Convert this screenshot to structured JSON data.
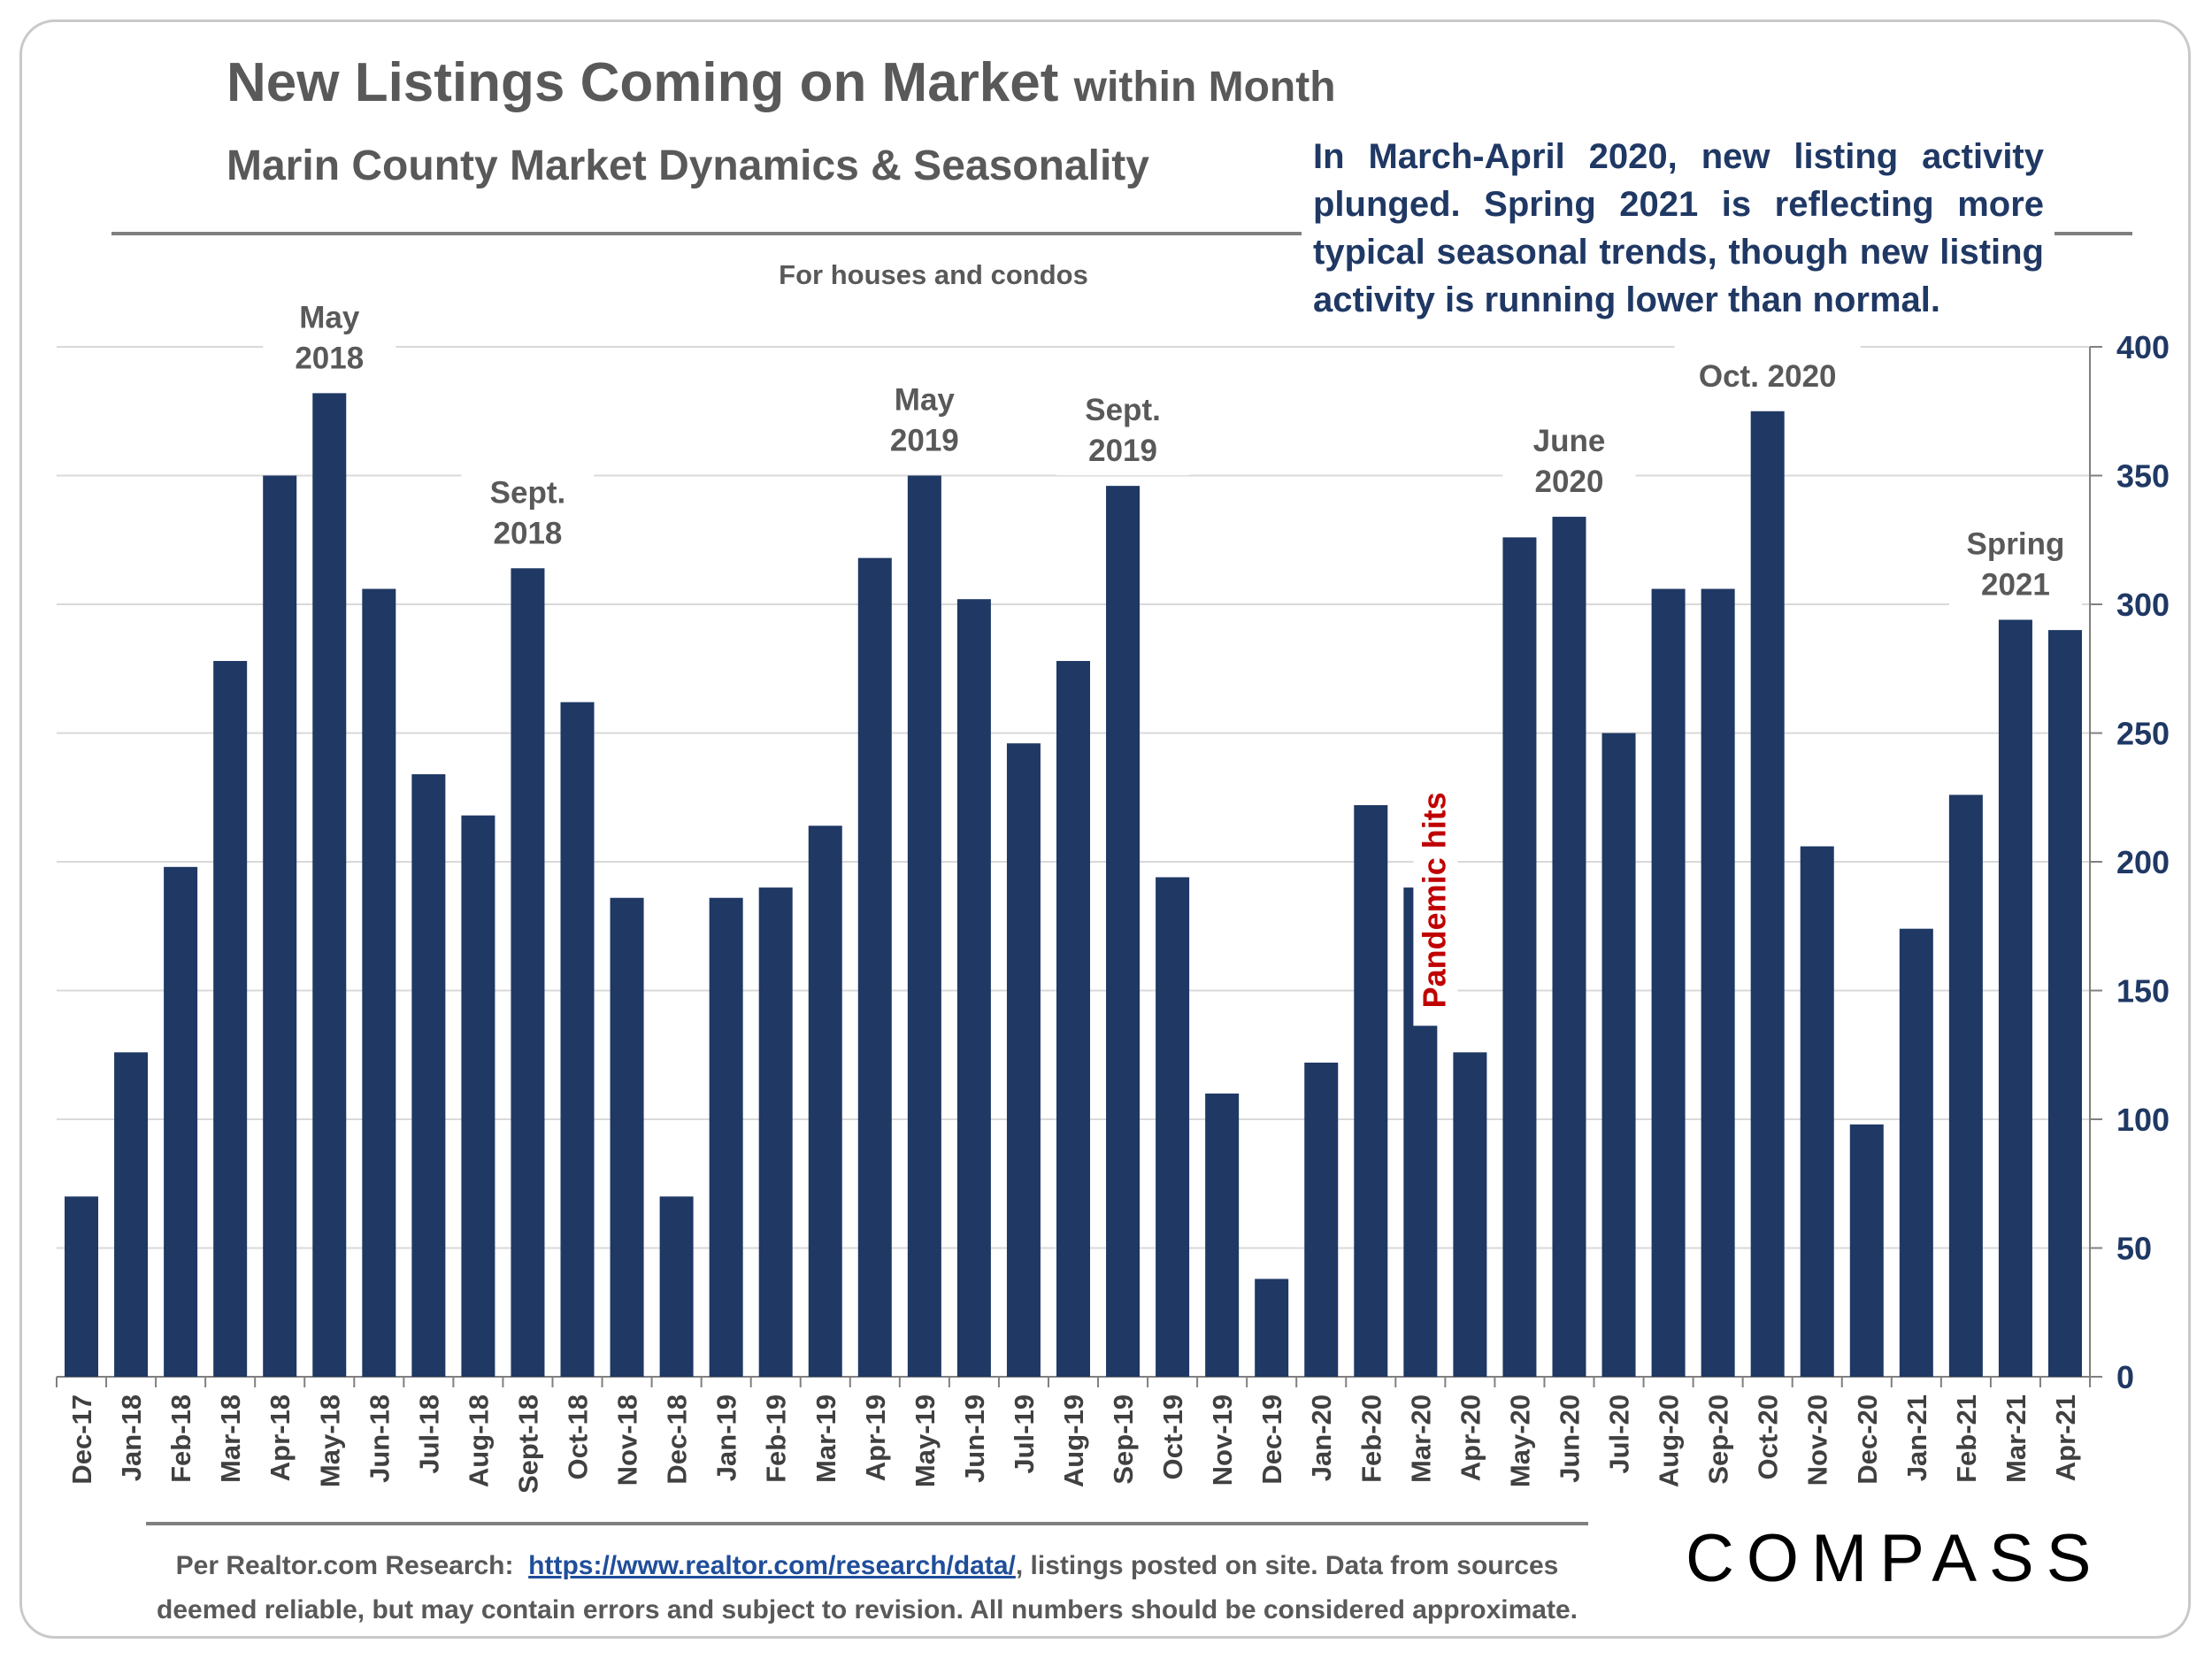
{
  "title": {
    "main": "New Listings Coming on Market",
    "suffix": "within Month"
  },
  "subtitle": "Marin County Market Dynamics & Seasonality",
  "callout": "In March-April 2020, new listing activity plunged. Spring 2021 is reflecting more typical seasonal trends, though new listing activity is running lower than normal.",
  "colors": {
    "bar": "#1f3864",
    "annotation": "#595959",
    "pandemic": "#c00000",
    "callout": "#1f3864",
    "axis": "#1f3864"
  },
  "chart_data": {
    "type": "bar",
    "note": "For houses and condos",
    "categories": [
      "Dec-17",
      "Jan-18",
      "Feb-18",
      "Mar-18",
      "Apr-18",
      "May-18",
      "Jun-18",
      "Jul-18",
      "Aug-18",
      "Sept-18",
      "Oct-18",
      "Nov-18",
      "Dec-18",
      "Jan-19",
      "Feb-19",
      "Mar-19",
      "Apr-19",
      "May-19",
      "Jun-19",
      "Jul-19",
      "Aug-19",
      "Sep-19",
      "Oct-19",
      "Nov-19",
      "Dec-19",
      "Jan-20",
      "Feb-20",
      "Mar-20",
      "Apr-20",
      "May-20",
      "Jun-20",
      "Jul-20",
      "Aug-20",
      "Sep-20",
      "Oct-20",
      "Nov-20",
      "Dec-20",
      "Jan-21",
      "Feb-21",
      "Mar-21",
      "Apr-21"
    ],
    "values": [
      70,
      126,
      198,
      278,
      350,
      382,
      306,
      234,
      218,
      314,
      262,
      186,
      70,
      186,
      190,
      214,
      318,
      350,
      302,
      246,
      278,
      346,
      194,
      110,
      38,
      122,
      222,
      190,
      126,
      326,
      334,
      250,
      306,
      306,
      375,
      206,
      98,
      174,
      226,
      294,
      290
    ],
    "ylim": [
      0,
      400
    ],
    "yticks": [
      0,
      50,
      100,
      150,
      200,
      250,
      300,
      350,
      400
    ],
    "y_axis_side": "right",
    "grid": true,
    "annotations": [
      {
        "index": 5,
        "lines": [
          "May",
          "2018"
        ]
      },
      {
        "index": 9,
        "lines": [
          "Sept.",
          "2018"
        ]
      },
      {
        "index": 17,
        "lines": [
          "May",
          "2019"
        ]
      },
      {
        "index": 21,
        "lines": [
          "Sept.",
          "2019"
        ]
      },
      {
        "index": 30,
        "lines": [
          "June",
          "2020"
        ]
      },
      {
        "index": 34,
        "lines": [
          "Oct. 2020"
        ]
      },
      {
        "index": 39,
        "lines": [
          "Spring",
          "2021"
        ]
      }
    ],
    "pandemic_label": {
      "text": "Pandemic hits",
      "index": 28
    }
  },
  "footer": {
    "prefix": "Per Realtor.com Research:",
    "link": "https://www.realtor.com/research/data/",
    "suffix": ", listings posted on site. Data from sources",
    "line2": "deemed reliable, but may contain errors and subject to revision. All numbers should be considered approximate."
  },
  "logo": "COMPASS"
}
